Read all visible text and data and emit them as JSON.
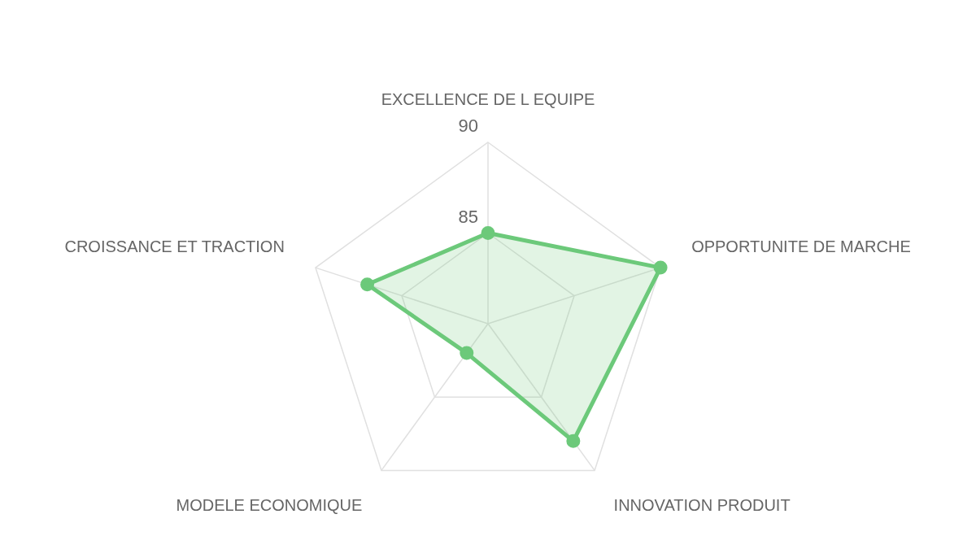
{
  "chart_data": {
    "type": "radar",
    "categories": [
      "EXCELLENCE DE L EQUIPE",
      "OPPORTUNITE DE MARCHE",
      "INNOVATION PRODUIT",
      "MODELE ECONOMIQUE",
      "CROISSANCE ET TRACTION"
    ],
    "series": [
      {
        "color": "#6cc97a",
        "values": [
          85,
          90,
          88,
          82,
          87
        ]
      }
    ],
    "ylim": [
      80,
      90
    ],
    "yticks": [
      85,
      90
    ],
    "grid": true,
    "marker": "circle"
  }
}
